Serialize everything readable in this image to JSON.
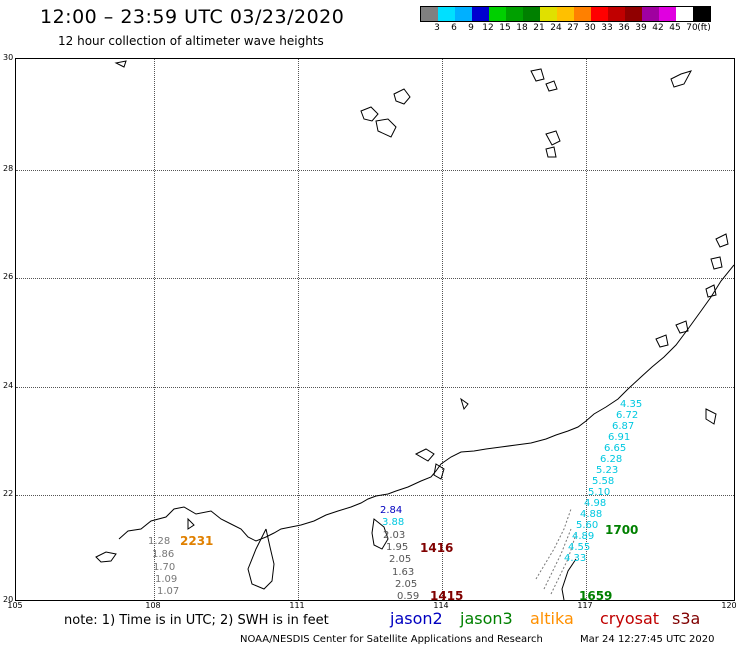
{
  "header": {
    "title": "12:00 – 23:59 UTC 03/23/2020",
    "subtitle": "12 hour collection of altimeter wave heights"
  },
  "colorbar": {
    "colors": [
      "#808080",
      "#00e0ff",
      "#00b0ff",
      "#0000d0",
      "#00d000",
      "#00a000",
      "#008000",
      "#e0e000",
      "#ffc000",
      "#ff8000",
      "#ff0000",
      "#c00000",
      "#900000",
      "#a000a0",
      "#e000e0",
      "#ffffff",
      "#000000"
    ],
    "ticks": [
      "3",
      "6",
      "9",
      "12",
      "15",
      "18",
      "21",
      "24",
      "27",
      "30",
      "33",
      "36",
      "39",
      "42",
      "45",
      "70"
    ],
    "unit": "(ft)"
  },
  "map": {
    "lat_labels": [
      "30",
      "28",
      "26",
      "24",
      "22",
      "20"
    ],
    "lon_labels": [
      "105",
      "108",
      "111",
      "114",
      "117",
      "120"
    ],
    "track_labels": [
      {
        "text": "2231",
        "color": "#e08000"
      },
      {
        "text": "1416",
        "color": "#800000"
      },
      {
        "text": "1415",
        "color": "#800000"
      },
      {
        "text": "1700",
        "color": "#008000"
      },
      {
        "text": "1659",
        "color": "#008000"
      }
    ],
    "swh_gray_left": [
      "1.28",
      "1.86",
      "1.70",
      "1.09",
      "1.07"
    ],
    "swh_gray_mid": [
      "2.03",
      "1.95",
      "2.05",
      "1.63",
      "2.05",
      "0.59"
    ],
    "swh_mid_top": [
      "2.84",
      "3.88"
    ],
    "swh_cyan": [
      "4.35",
      "6.72",
      "6.87",
      "6.91",
      "6.65",
      "6.28",
      "5.23",
      "5.58",
      "5.10",
      "4.98",
      "4.88",
      "5.60",
      "4.89",
      "4.55",
      "4.33"
    ]
  },
  "footer": {
    "note": "note: 1) Time is in UTC; 2) SWH is in feet",
    "satellites": [
      {
        "name": "jason2",
        "color": "#0000c0"
      },
      {
        "name": "jason3",
        "color": "#008000"
      },
      {
        "name": "altika",
        "color": "#ff9000"
      },
      {
        "name": "cryosat",
        "color": "#c00000"
      },
      {
        "name": "s3a",
        "color": "#800000"
      }
    ],
    "credit": "NOAA/NESDIS Center for Satellite Applications and Research",
    "timestamp": "Mar 24 12:27:45 UTC 2020"
  }
}
